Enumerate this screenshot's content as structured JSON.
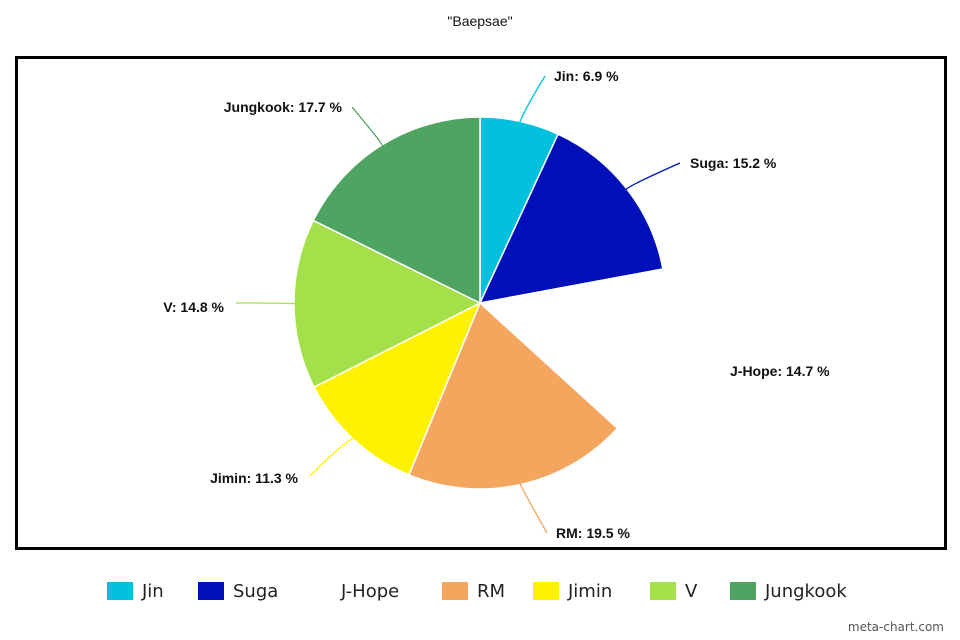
{
  "chart_data": {
    "type": "pie",
    "title": "\"Baepsae\"",
    "slices": [
      {
        "label": "Jin",
        "value": 6.9,
        "color": "#00c0de",
        "display_value": "Jin: 6.9 %"
      },
      {
        "label": "Suga",
        "value": 15.2,
        "color": "#0010b8",
        "display_value": "Suga: 15.2 %"
      },
      {
        "label": "J-Hope",
        "value": 14.7,
        "color": "#ffffff",
        "display_value": "J-Hope: 14.7 %"
      },
      {
        "label": "RM",
        "value": 19.5,
        "color": "#f5a65e",
        "display_value": "RM: 19.5 %"
      },
      {
        "label": "Jimin",
        "value": 11.3,
        "color": "#fff200",
        "display_value": "Jimin: 11.3 %"
      },
      {
        "label": "V",
        "value": 14.8,
        "color": "#a3e04a",
        "display_value": "V: 14.8 %"
      },
      {
        "label": "Jungkook",
        "value": 17.7,
        "color": "#4fa462",
        "display_value": "Jungkook: 17.7 %"
      }
    ],
    "legend_position": "bottom"
  },
  "watermark": "meta-chart.com"
}
